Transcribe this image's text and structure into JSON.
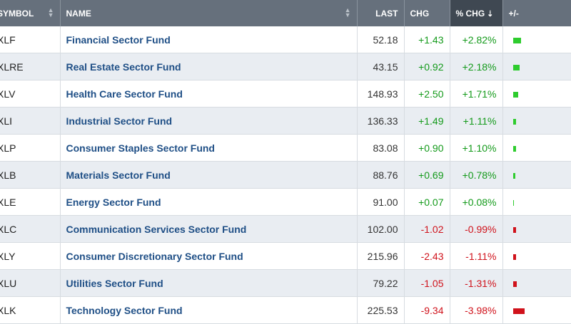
{
  "columns": {
    "symbol": "SYMBOL",
    "name": "NAME",
    "last": "LAST",
    "chg": "CHG",
    "pct": "% CHG",
    "pm": "+/-"
  },
  "colors": {
    "up": "#2ecc2e",
    "down": "#d0121b",
    "header": "#66707c",
    "header_sorted": "#3f4852"
  },
  "rows": [
    {
      "symbol": "XLF",
      "name": "Financial Sector Fund",
      "last": "52.18",
      "chg": "+1.43",
      "pct": "+2.82%",
      "pct_value": 2.82
    },
    {
      "symbol": "XLRE",
      "name": "Real Estate Sector Fund",
      "last": "43.15",
      "chg": "+0.92",
      "pct": "+2.18%",
      "pct_value": 2.18
    },
    {
      "symbol": "XLV",
      "name": "Health Care Sector Fund",
      "last": "148.93",
      "chg": "+2.50",
      "pct": "+1.71%",
      "pct_value": 1.71
    },
    {
      "symbol": "XLI",
      "name": "Industrial Sector Fund",
      "last": "136.33",
      "chg": "+1.49",
      "pct": "+1.11%",
      "pct_value": 1.11
    },
    {
      "symbol": "XLP",
      "name": "Consumer Staples Sector Fund",
      "last": "83.08",
      "chg": "+0.90",
      "pct": "+1.10%",
      "pct_value": 1.1
    },
    {
      "symbol": "XLB",
      "name": "Materials Sector Fund",
      "last": "88.76",
      "chg": "+0.69",
      "pct": "+0.78%",
      "pct_value": 0.78
    },
    {
      "symbol": "XLE",
      "name": "Energy Sector Fund",
      "last": "91.00",
      "chg": "+0.07",
      "pct": "+0.08%",
      "pct_value": 0.08
    },
    {
      "symbol": "XLC",
      "name": "Communication Services Sector Fund",
      "last": "102.00",
      "chg": "-1.02",
      "pct": "-0.99%",
      "pct_value": -0.99
    },
    {
      "symbol": "XLY",
      "name": "Consumer Discretionary Sector Fund",
      "last": "215.96",
      "chg": "-2.43",
      "pct": "-1.11%",
      "pct_value": -1.11
    },
    {
      "symbol": "XLU",
      "name": "Utilities Sector Fund",
      "last": "79.22",
      "chg": "-1.05",
      "pct": "-1.31%",
      "pct_value": -1.31
    },
    {
      "symbol": "XLK",
      "name": "Technology Sector Fund",
      "last": "225.53",
      "chg": "-9.34",
      "pct": "-3.98%",
      "pct_value": -3.98
    }
  ]
}
